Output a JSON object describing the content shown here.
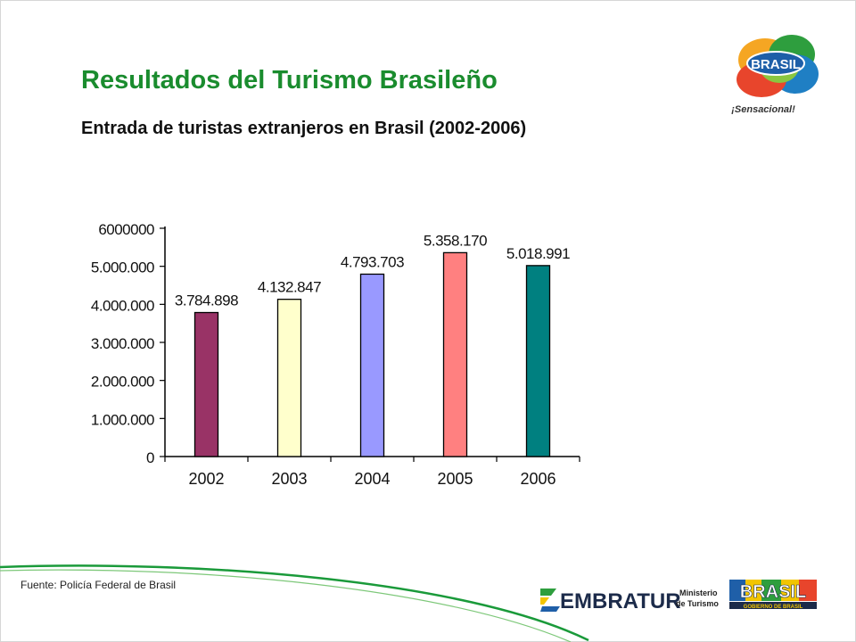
{
  "slide": {
    "title": "Resultados del Turismo Brasileño",
    "subtitle": "Entrada de turistas extranjeros en Brasil (2002-2006)",
    "source": "Fuente: Policía Federal de Brasil"
  },
  "logos": {
    "brasil_word": "BRASIL",
    "brasil_tagline": "¡Sensacional!",
    "embratur_word": "EMBRATUR",
    "ministry_line1": "Ministerio",
    "ministry_line2": "de Turismo",
    "gov_word": "BRASIL",
    "gov_caption": "GOBIERNO DE BRASIL"
  },
  "colors": {
    "title_green": "#1a8c2e",
    "bar_2002": "#993366",
    "bar_2003": "#ffffcc",
    "bar_2004": "#9999ff",
    "bar_2005": "#ff8080",
    "bar_2006": "#008080"
  },
  "chart_data": {
    "type": "bar",
    "categories": [
      "2002",
      "2003",
      "2004",
      "2005",
      "2006"
    ],
    "values": [
      3784898,
      4132847,
      4793703,
      5358170,
      5018991
    ],
    "data_labels": [
      "3.784.898",
      "4.132.847",
      "4.793.703",
      "5.358.170",
      "5.018.991"
    ],
    "colors": [
      "#993366",
      "#ffffcc",
      "#9999ff",
      "#ff8080",
      "#008080"
    ],
    "ylim": [
      0,
      6000000
    ],
    "yticks": [
      0,
      1000000,
      2000000,
      3000000,
      4000000,
      5000000,
      6000000
    ],
    "ytick_labels": [
      "0",
      "1.000.000",
      "2.000.000",
      "3.000.000",
      "4.000.000",
      "5.000.000",
      "6000000"
    ],
    "title": "",
    "xlabel": "",
    "ylabel": "",
    "grid": false,
    "legend": "none"
  }
}
